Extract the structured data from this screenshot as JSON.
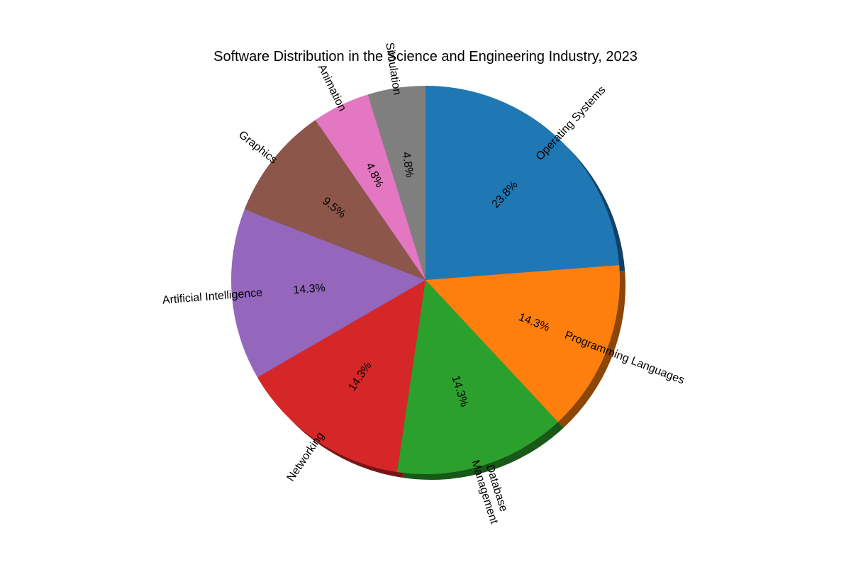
{
  "chart_data": {
    "type": "pie",
    "title": "Software Distribution in the Science and Engineering Industry, 2023",
    "categories": [
      "Operating Systems",
      "Programming Languages",
      "Database\nManagement",
      "Networking",
      "Artificial Intelligence",
      "Graphics",
      "Animation",
      "Simulation"
    ],
    "values": [
      23.8,
      14.3,
      14.3,
      14.3,
      14.3,
      9.5,
      4.8,
      4.8
    ],
    "percent_labels": [
      "23.8%",
      "14.3%",
      "14.3%",
      "14.3%",
      "14.3%",
      "9.5%",
      "4.8%",
      "4.8%"
    ],
    "colors": [
      "#1f77b4",
      "#ff7f0e",
      "#2ca02c",
      "#d62728",
      "#9467bd",
      "#8c564b",
      "#e377c2",
      "#7f7f7f"
    ],
    "start_angle_deg": 90,
    "direction": "clockwise",
    "shadow": true,
    "rotated_labels": true,
    "legend": "none"
  }
}
